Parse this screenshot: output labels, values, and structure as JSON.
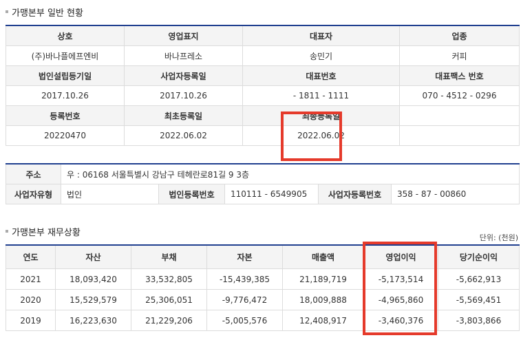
{
  "section1": {
    "title": "가맹본부 일반 현황"
  },
  "general": {
    "headers1": [
      "상호",
      "영업표지",
      "대표자",
      "업종"
    ],
    "values1": [
      "(주)바나플에프엔비",
      "바나프레소",
      "송민기",
      "커피"
    ],
    "headers2": [
      "법인설립등기일",
      "사업자등록일",
      "대표번호",
      "대표팩스 번호"
    ],
    "values2": [
      "2017.10.26",
      "2017.10.26",
      "- 1811 - 1111",
      "070 - 4512 - 0296"
    ],
    "headers3": [
      "등록번호",
      "최초등록일",
      "최종등록일",
      ""
    ],
    "values3": [
      "20220470",
      "2022.06.02",
      "2022.06.02",
      ""
    ]
  },
  "address": {
    "label": "주소",
    "value": "우 : 06168 서울특별시 강남구 테헤란로81길 9 3층",
    "biz_type_label": "사업자유형",
    "biz_type_value": "법인",
    "corp_reg_label": "법인등록번호",
    "corp_reg_value": "110111 - 6549905",
    "biz_reg_label": "사업자등록번호",
    "biz_reg_value": "358 - 87 - 00860"
  },
  "section2": {
    "title": "가맹본부 재무상황",
    "unit": "단위: (천원)"
  },
  "finance": {
    "headers": [
      "연도",
      "자산",
      "부채",
      "자본",
      "매출액",
      "영업이익",
      "당기순이익"
    ],
    "rows": [
      [
        "2021",
        "18,093,420",
        "33,532,805",
        "-15,439,385",
        "21,189,719",
        "-5,173,514",
        "-5,662,913"
      ],
      [
        "2020",
        "15,529,579",
        "25,306,051",
        "-9,776,472",
        "18,009,888",
        "-4,965,860",
        "-5,569,451"
      ],
      [
        "2019",
        "16,223,630",
        "21,229,206",
        "-5,005,576",
        "12,408,917",
        "-3,460,376",
        "-3,803,866"
      ]
    ]
  },
  "colors": {
    "accent": "#1f3f8f",
    "highlight": "#e53a2b",
    "header_bg": "#f4f4f4"
  }
}
